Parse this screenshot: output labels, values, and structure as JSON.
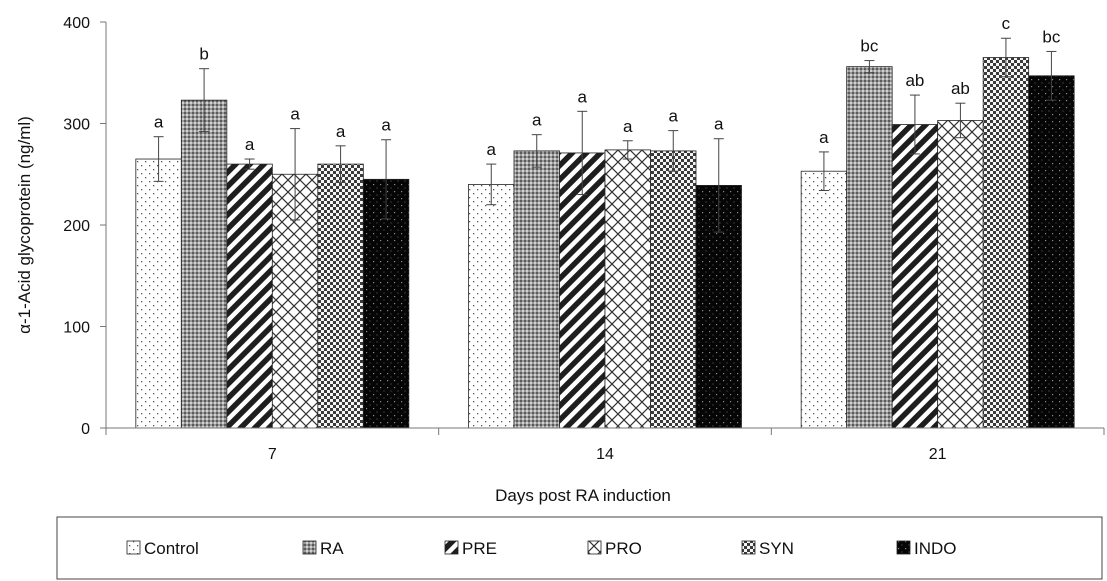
{
  "chart_data": {
    "type": "bar",
    "xlabel": "Days post RA induction",
    "ylabel": "α-1-Acid glycoprotein (ng/ml)",
    "ylim": [
      0,
      400
    ],
    "yticks": [
      "0",
      "100",
      "200",
      "300",
      "400"
    ],
    "categories": [
      "7",
      "14",
      "21"
    ],
    "grid": false,
    "legend_position": "bottom",
    "series": [
      {
        "name": "Control",
        "pattern": "dots-sparse",
        "values": [
          265,
          240,
          253
        ],
        "errors": [
          22,
          20,
          19
        ],
        "labels": [
          "a",
          "a",
          "a"
        ]
      },
      {
        "name": "RA",
        "pattern": "grid-fine",
        "values": [
          323,
          273,
          356
        ],
        "errors": [
          31,
          16,
          6
        ],
        "labels": [
          "b",
          "a",
          "bc"
        ]
      },
      {
        "name": "PRE",
        "pattern": "diagonal-stripes",
        "values": [
          260,
          271,
          299
        ],
        "errors": [
          5,
          41,
          29
        ],
        "labels": [
          "a",
          "a",
          "ab"
        ]
      },
      {
        "name": "PRO",
        "pattern": "diamond-lattice",
        "values": [
          250,
          274,
          303
        ],
        "errors": [
          45,
          9,
          17
        ],
        "labels": [
          "a",
          "a",
          "ab"
        ]
      },
      {
        "name": "SYN",
        "pattern": "checker",
        "values": [
          260,
          273,
          365
        ],
        "errors": [
          18,
          20,
          19
        ],
        "labels": [
          "a",
          "a",
          "c"
        ]
      },
      {
        "name": "INDO",
        "pattern": "dark-dots",
        "values": [
          245,
          239,
          347
        ],
        "errors": [
          39,
          46,
          24
        ],
        "labels": [
          "a",
          "a",
          "bc"
        ]
      }
    ]
  }
}
